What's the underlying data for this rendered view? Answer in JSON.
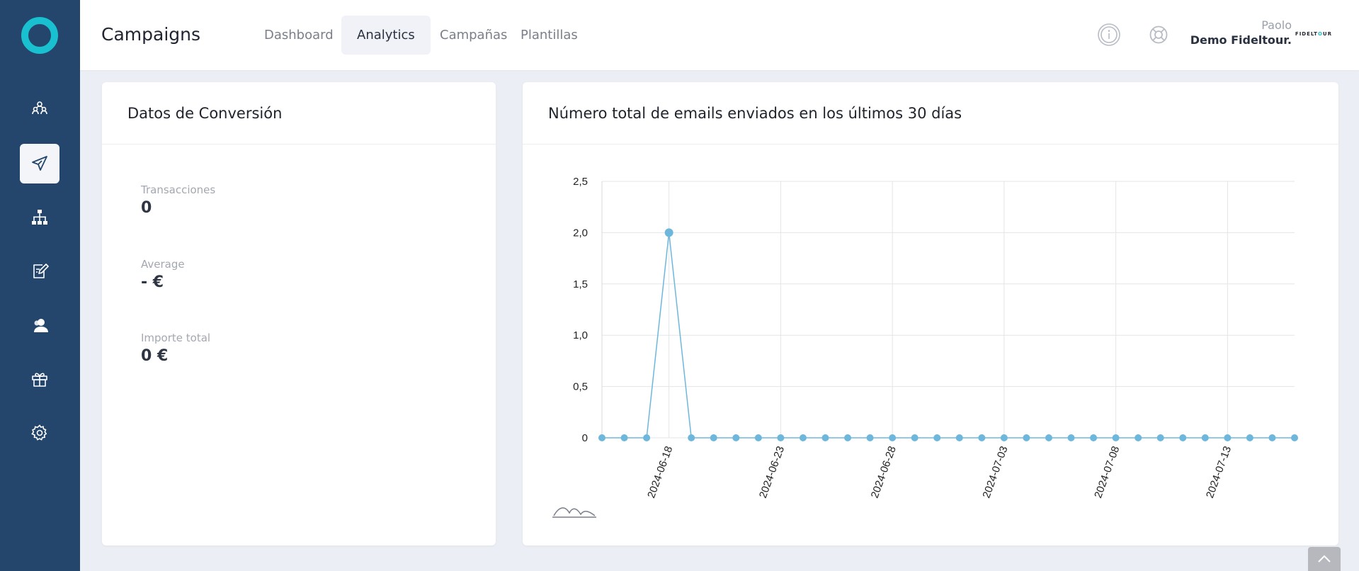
{
  "app": {
    "title": "Campaigns"
  },
  "tabs": [
    {
      "label": "Dashboard"
    },
    {
      "label": "Analytics"
    },
    {
      "label": "Campañas"
    },
    {
      "label": "Plantillas"
    }
  ],
  "user": {
    "first_name": "Paolo",
    "company": "Demo Fideltour."
  },
  "brand": {
    "logo_text_1": "FIDELT",
    "logo_text_2": "O",
    "logo_text_3": "UR"
  },
  "sidebar": {
    "items": [
      {
        "icon": "users-group-icon"
      },
      {
        "icon": "paper-plane-icon"
      },
      {
        "icon": "sitemap-icon"
      },
      {
        "icon": "edit-note-icon"
      },
      {
        "icon": "contacts-icon"
      },
      {
        "icon": "gift-icon"
      },
      {
        "icon": "gear-icon"
      }
    ]
  },
  "colors": {
    "sidebar": "#24466c",
    "accent": "#19c0cf",
    "series": "#6db7dd"
  },
  "conversion": {
    "title": "Datos de Conversión",
    "transacciones_label": "Transacciones",
    "transacciones_value": "0",
    "average_label": "Average",
    "average_value": "- €",
    "importe_label": "Importe total",
    "importe_value": "0 €"
  },
  "emails_card": {
    "title": "Número total de emails enviados en los últimos 30 días"
  },
  "chart_data": {
    "type": "line",
    "title": "Número total de emails enviados en los últimos 30 días",
    "x": [
      "2024-06-15",
      "2024-06-16",
      "2024-06-17",
      "2024-06-18",
      "2024-06-19",
      "2024-06-20",
      "2024-06-21",
      "2024-06-22",
      "2024-06-23",
      "2024-06-24",
      "2024-06-25",
      "2024-06-26",
      "2024-06-27",
      "2024-06-28",
      "2024-06-29",
      "2024-06-30",
      "2024-07-01",
      "2024-07-02",
      "2024-07-03",
      "2024-07-04",
      "2024-07-05",
      "2024-07-06",
      "2024-07-07",
      "2024-07-08",
      "2024-07-09",
      "2024-07-10",
      "2024-07-11",
      "2024-07-12",
      "2024-07-13",
      "2024-07-14",
      "2024-07-15",
      "2024-07-16"
    ],
    "values": [
      0,
      0,
      0,
      2,
      0,
      0,
      0,
      0,
      0,
      0,
      0,
      0,
      0,
      0,
      0,
      0,
      0,
      0,
      0,
      0,
      0,
      0,
      0,
      0,
      0,
      0,
      0,
      0,
      0,
      0,
      0,
      0
    ],
    "x_tick_labels": [
      "2024-06-18",
      "2024-06-23",
      "2024-06-28",
      "2024-07-03",
      "2024-07-08",
      "2024-07-13"
    ],
    "y_tick_labels": [
      "0",
      "0,5",
      "1,0",
      "1,5",
      "2,0",
      "2,5"
    ],
    "ylim": [
      0,
      2.5
    ],
    "grid": true,
    "legend": "none"
  }
}
